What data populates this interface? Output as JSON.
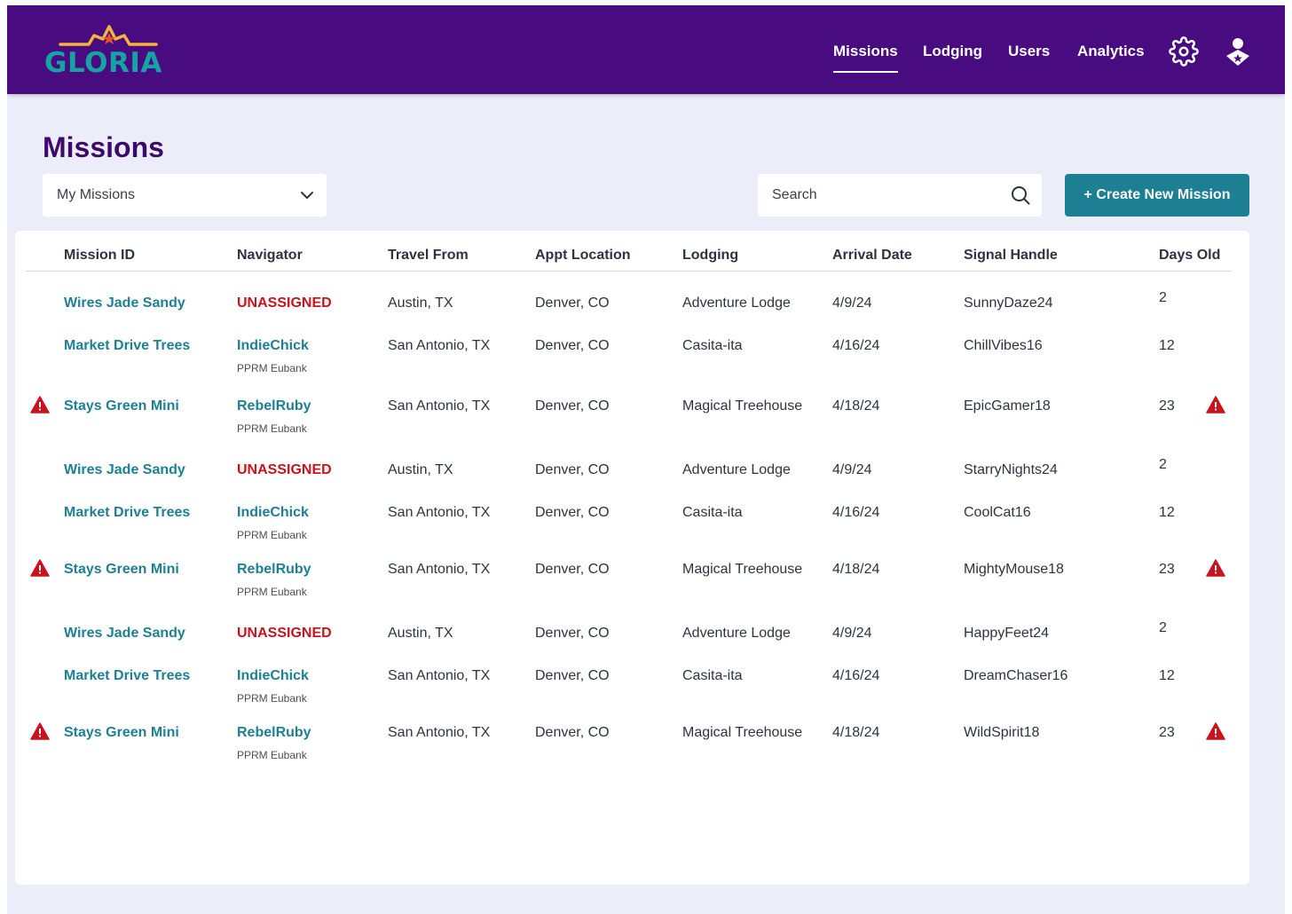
{
  "app": {
    "logo_text": "GLORIA",
    "brand_colors": {
      "header_bg": "#490c80",
      "logo_teal": "#16a3a3",
      "logo_gold": "#f2b53a",
      "accent_teal": "#1d7f93",
      "danger_red": "#c8141e"
    }
  },
  "nav": {
    "items": [
      {
        "label": "Missions",
        "active": true
      },
      {
        "label": "Lodging",
        "active": false
      },
      {
        "label": "Users",
        "active": false
      },
      {
        "label": "Analytics",
        "active": false
      }
    ],
    "icons": [
      "gear-icon",
      "user-profile-icon"
    ]
  },
  "page": {
    "title": "Missions",
    "filter": {
      "selected": "My Missions"
    },
    "search": {
      "placeholder": "Search"
    },
    "create_button": "+ Create New Mission"
  },
  "table": {
    "columns": [
      "Mission ID",
      "Navigator",
      "Travel From",
      "Appt Location",
      "Lodging",
      "Arrival Date",
      "Signal Handle",
      "Days Old"
    ],
    "rows": [
      {
        "warning": false,
        "mission_id": "Wires Jade Sandy",
        "navigator": "UNASSIGNED",
        "unassigned": true,
        "navigator_sub": "",
        "travel_from": "Austin, TX",
        "appt_location": "Denver, CO",
        "lodging": "Adventure Lodge",
        "arrival_date": "4/9/24",
        "signal_handle": "SunnyDaze24",
        "days_old": "2"
      },
      {
        "warning": false,
        "mission_id": "Market Drive Trees",
        "navigator": "IndieChick",
        "unassigned": false,
        "navigator_sub": "PPRM Eubank",
        "travel_from": "San Antonio, TX",
        "appt_location": "Denver, CO",
        "lodging": "Casita-ita",
        "arrival_date": "4/16/24",
        "signal_handle": "ChillVibes16",
        "days_old": "12"
      },
      {
        "warning": true,
        "mission_id": "Stays Green Mini",
        "navigator": "RebelRuby",
        "unassigned": false,
        "navigator_sub": "PPRM Eubank",
        "travel_from": "San Antonio, TX",
        "appt_location": "Denver, CO",
        "lodging": "Magical Treehouse",
        "arrival_date": "4/18/24",
        "signal_handle": "EpicGamer18",
        "days_old": "23"
      },
      {
        "warning": false,
        "mission_id": "Wires Jade Sandy",
        "navigator": "UNASSIGNED",
        "unassigned": true,
        "navigator_sub": "",
        "travel_from": "Austin, TX",
        "appt_location": "Denver, CO",
        "lodging": "Adventure Lodge",
        "arrival_date": "4/9/24",
        "signal_handle": "StarryNights24",
        "days_old": "2"
      },
      {
        "warning": false,
        "mission_id": "Market Drive Trees",
        "navigator": "IndieChick",
        "unassigned": false,
        "navigator_sub": "PPRM Eubank",
        "travel_from": "San Antonio, TX",
        "appt_location": "Denver, CO",
        "lodging": "Casita-ita",
        "arrival_date": "4/16/24",
        "signal_handle": "CoolCat16",
        "days_old": "12"
      },
      {
        "warning": true,
        "mission_id": "Stays Green Mini",
        "navigator": "RebelRuby",
        "unassigned": false,
        "navigator_sub": "PPRM Eubank",
        "travel_from": "San Antonio, TX",
        "appt_location": "Denver, CO",
        "lodging": "Magical Treehouse",
        "arrival_date": "4/18/24",
        "signal_handle": "MightyMouse18",
        "days_old": "23"
      },
      {
        "warning": false,
        "mission_id": "Wires Jade Sandy",
        "navigator": "UNASSIGNED",
        "unassigned": true,
        "navigator_sub": "",
        "travel_from": "Austin, TX",
        "appt_location": "Denver, CO",
        "lodging": "Adventure Lodge",
        "arrival_date": "4/9/24",
        "signal_handle": "HappyFeet24",
        "days_old": "2"
      },
      {
        "warning": false,
        "mission_id": "Market Drive Trees",
        "navigator": "IndieChick",
        "unassigned": false,
        "navigator_sub": "PPRM Eubank",
        "travel_from": "San Antonio, TX",
        "appt_location": "Denver, CO",
        "lodging": "Casita-ita",
        "arrival_date": "4/16/24",
        "signal_handle": "DreamChaser16",
        "days_old": "12"
      },
      {
        "warning": true,
        "mission_id": "Stays Green Mini",
        "navigator": "RebelRuby",
        "unassigned": false,
        "navigator_sub": "PPRM Eubank",
        "travel_from": "San Antonio, TX",
        "appt_location": "Denver, CO",
        "lodging": "Magical Treehouse",
        "arrival_date": "4/18/24",
        "signal_handle": "WildSpirit18",
        "days_old": "23"
      }
    ]
  }
}
